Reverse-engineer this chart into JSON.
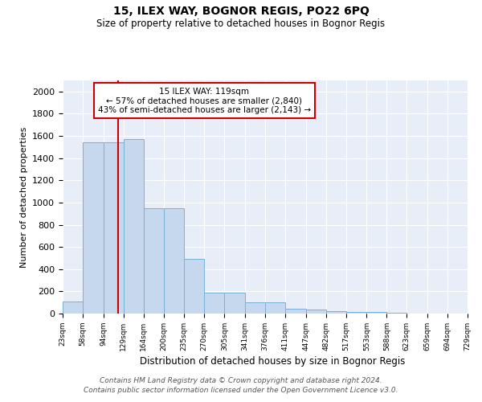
{
  "title": "15, ILEX WAY, BOGNOR REGIS, PO22 6PQ",
  "subtitle": "Size of property relative to detached houses in Bognor Regis",
  "xlabel": "Distribution of detached houses by size in Bognor Regis",
  "ylabel": "Number of detached properties",
  "bar_values": [
    110,
    1540,
    1545,
    1575,
    950,
    950,
    490,
    190,
    185,
    100,
    98,
    40,
    35,
    25,
    18,
    15,
    5,
    3,
    2,
    1
  ],
  "bar_edges": [
    23,
    58,
    94,
    129,
    164,
    200,
    235,
    270,
    305,
    341,
    376,
    411,
    447,
    482,
    517,
    553,
    588,
    623,
    659,
    694,
    729
  ],
  "tick_labels": [
    "23sqm",
    "58sqm",
    "94sqm",
    "129sqm",
    "164sqm",
    "200sqm",
    "235sqm",
    "270sqm",
    "305sqm",
    "341sqm",
    "376sqm",
    "411sqm",
    "447sqm",
    "482sqm",
    "517sqm",
    "553sqm",
    "588sqm",
    "623sqm",
    "659sqm",
    "694sqm",
    "729sqm"
  ],
  "property_line_x": 119,
  "property_line_label": "15 ILEX WAY: 119sqm",
  "annotation_line1": "← 57% of detached houses are smaller (2,840)",
  "annotation_line2": "43% of semi-detached houses are larger (2,143) →",
  "bar_color": "#c5d8ed",
  "bar_edge_color": "#7aafd4",
  "line_color": "#cc0000",
  "annotation_box_color": "#cc0000",
  "background_color": "#e8eef8",
  "grid_color": "#ffffff",
  "ylim": [
    0,
    2100
  ],
  "yticks": [
    0,
    200,
    400,
    600,
    800,
    1000,
    1200,
    1400,
    1600,
    1800,
    2000
  ],
  "footnote1": "Contains HM Land Registry data © Crown copyright and database right 2024.",
  "footnote2": "Contains public sector information licensed under the Open Government Licence v3.0."
}
